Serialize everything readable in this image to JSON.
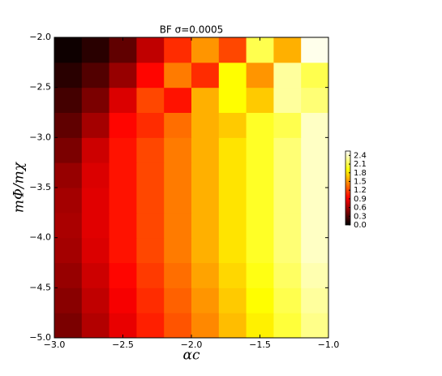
{
  "chart_data": {
    "type": "heatmap",
    "title": "BF σ=0.0005",
    "x_label": "αc",
    "y_label": "mΦ/mχ",
    "xlim": [
      -3,
      -1
    ],
    "ylim": [
      -5,
      -2
    ],
    "xticks": [
      {
        "value": -3,
        "label": "−3.0"
      },
      {
        "value": -2.5,
        "label": "−2.5"
      },
      {
        "value": -2,
        "label": "−2.0"
      },
      {
        "value": -1.5,
        "label": "−1.5"
      },
      {
        "value": -1,
        "label": "−1.0"
      }
    ],
    "yticks": [
      {
        "value": -5,
        "label": "−5.0"
      },
      {
        "value": -4.5,
        "label": "−4.5"
      },
      {
        "value": -4,
        "label": "−4.0"
      },
      {
        "value": -3.5,
        "label": "−3.5"
      },
      {
        "value": -3,
        "label": "−3.0"
      },
      {
        "value": -2.5,
        "label": "−2.5"
      },
      {
        "value": -2,
        "label": "−2.0"
      }
    ],
    "colormap": "hot",
    "zlim": [
      0,
      2.55
    ],
    "colorbar_ticks": [
      {
        "value": 0,
        "label": "0.0"
      },
      0.3,
      0.6,
      0.9,
      1.2,
      1.5,
      1.8,
      2.1,
      2.4
    ],
    "z": [
      [
        0.45,
        0.65,
        0.85,
        1.05,
        1.25,
        1.45,
        1.65,
        1.85,
        2.05,
        2.25
      ],
      [
        0.5,
        0.7,
        0.9,
        1.1,
        1.3,
        1.5,
        1.7,
        1.9,
        2.1,
        2.3
      ],
      [
        0.55,
        0.75,
        0.95,
        1.15,
        1.35,
        1.55,
        1.75,
        1.95,
        2.15,
        2.35
      ],
      [
        0.6,
        0.8,
        1.0,
        1.2,
        1.4,
        1.6,
        1.8,
        2.0,
        2.2,
        2.4
      ],
      [
        0.62,
        0.82,
        1.0,
        1.2,
        1.4,
        1.6,
        1.8,
        2.0,
        2.2,
        2.4
      ],
      [
        0.6,
        0.82,
        1.0,
        1.2,
        1.4,
        1.6,
        1.8,
        2.0,
        2.2,
        2.4
      ],
      [
        0.55,
        0.8,
        1.0,
        1.2,
        1.4,
        1.6,
        1.8,
        2.0,
        2.2,
        2.4
      ],
      [
        0.45,
        0.75,
        1.0,
        1.2,
        1.4,
        1.6,
        1.8,
        2.0,
        2.2,
        2.4
      ],
      [
        0.35,
        0.6,
        0.95,
        1.1,
        1.35,
        1.6,
        1.7,
        2.0,
        2.1,
        2.4
      ],
      [
        0.25,
        0.45,
        0.8,
        1.2,
        1.0,
        1.6,
        1.9,
        1.7,
        2.3,
        2.2
      ],
      [
        0.15,
        0.3,
        0.55,
        0.95,
        1.4,
        1.1,
        1.9,
        1.5,
        2.3,
        2.1
      ],
      [
        0.05,
        0.15,
        0.35,
        0.7,
        1.1,
        1.5,
        1.2,
        2.1,
        1.6,
        2.5
      ]
    ]
  }
}
